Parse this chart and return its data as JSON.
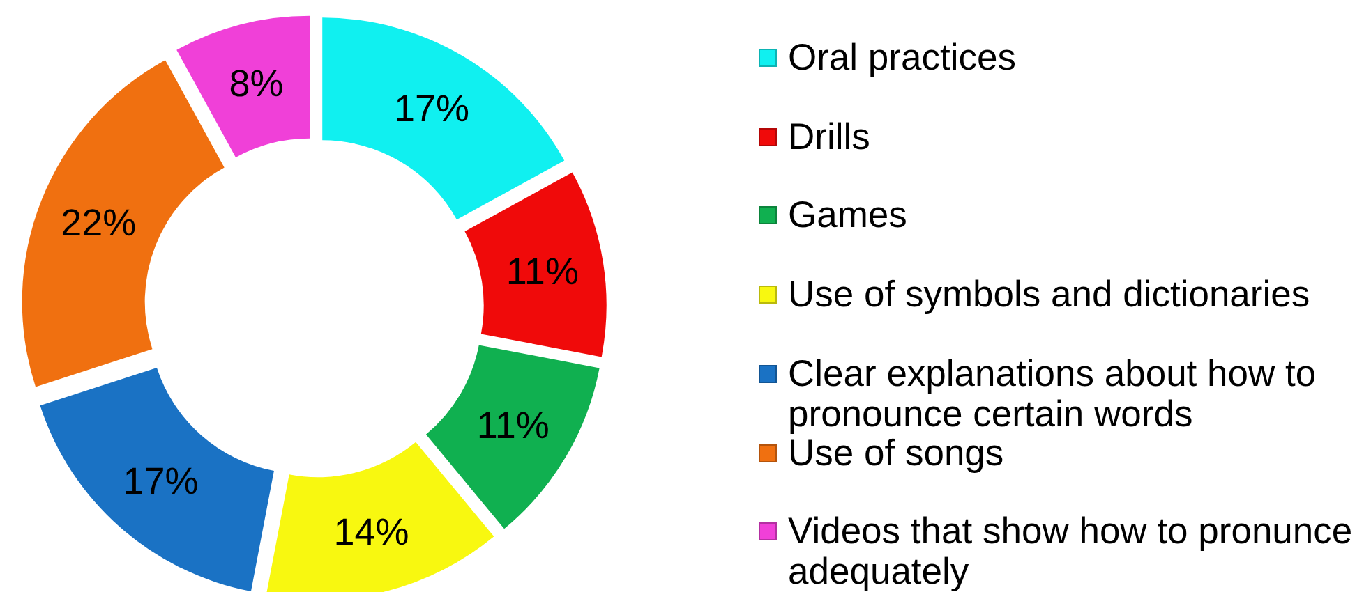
{
  "chart_data": {
    "type": "donut",
    "categories": [
      "Oral practices",
      "Drills",
      "Games",
      "Use of symbols and dictionaries",
      "Clear explanations about how to pronounce certain words",
      "Use of songs",
      "Videos that show how to pronunce adequately"
    ],
    "values": [
      17,
      11,
      11,
      14,
      17,
      22,
      8
    ],
    "value_labels": [
      "17%",
      "11%",
      "11%",
      "14%",
      "17%",
      "22%",
      "8%"
    ],
    "colors": [
      "#10f0f0",
      "#f00a0a",
      "#10b050",
      "#f8f810",
      "#1a72c4",
      "#f07010",
      "#f040d8"
    ],
    "legend": "right"
  }
}
